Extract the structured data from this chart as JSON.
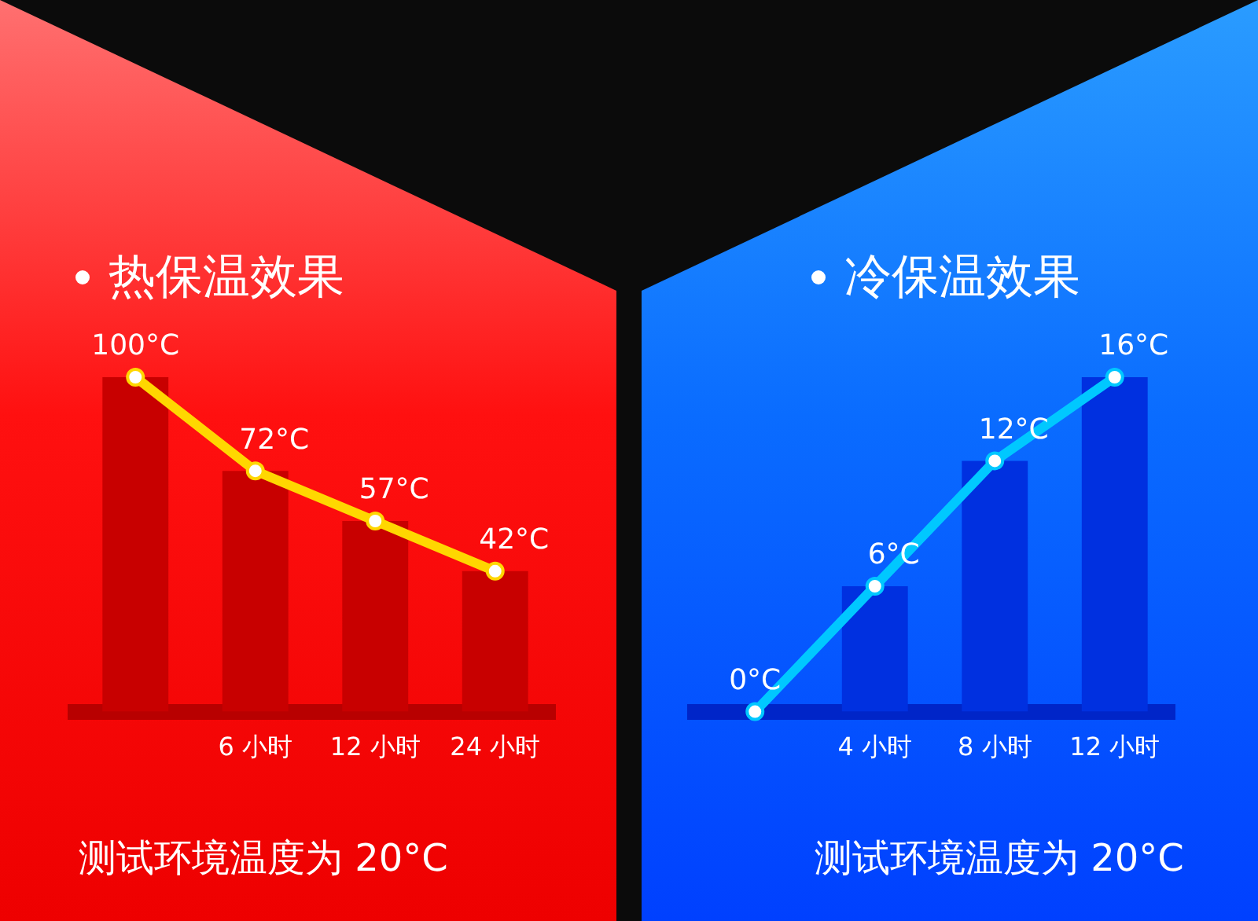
{
  "chart_data": [
    {
      "type": "bar",
      "title": "热保温效果",
      "categories": [
        null,
        "6 小时",
        "12 小时",
        "24 小时"
      ],
      "marker": "circle",
      "grid": false,
      "legend": false,
      "tick_labels": "x",
      "annotations": [
        "测试环境温度为 20°C"
      ],
      "series": [
        {
          "color": "#c80000",
          "values": [
            100,
            72,
            57,
            42
          ]
        },
        {
          "type": "line",
          "color": "#ffd700",
          "values": [
            100,
            72,
            57,
            42
          ],
          "value_labels": [
            "100°C",
            "72°C",
            "57°C",
            "42°C"
          ]
        }
      ]
    },
    {
      "type": "bar",
      "title": "冷保温效果",
      "categories": [
        null,
        "4 小时",
        "8 小时",
        "12 小时"
      ],
      "marker": "circle",
      "grid": false,
      "legend": false,
      "tick_labels": "x",
      "annotations": [
        "测试环境温度为 20°C"
      ],
      "series": [
        {
          "color": "#0030e0",
          "values": [
            0,
            6,
            12,
            16
          ]
        },
        {
          "type": "line",
          "color": "#00c8ff",
          "values": [
            0,
            6,
            12,
            16
          ],
          "value_labels": [
            "0°C",
            "6°C",
            "12°C",
            "16°C"
          ]
        }
      ]
    }
  ]
}
